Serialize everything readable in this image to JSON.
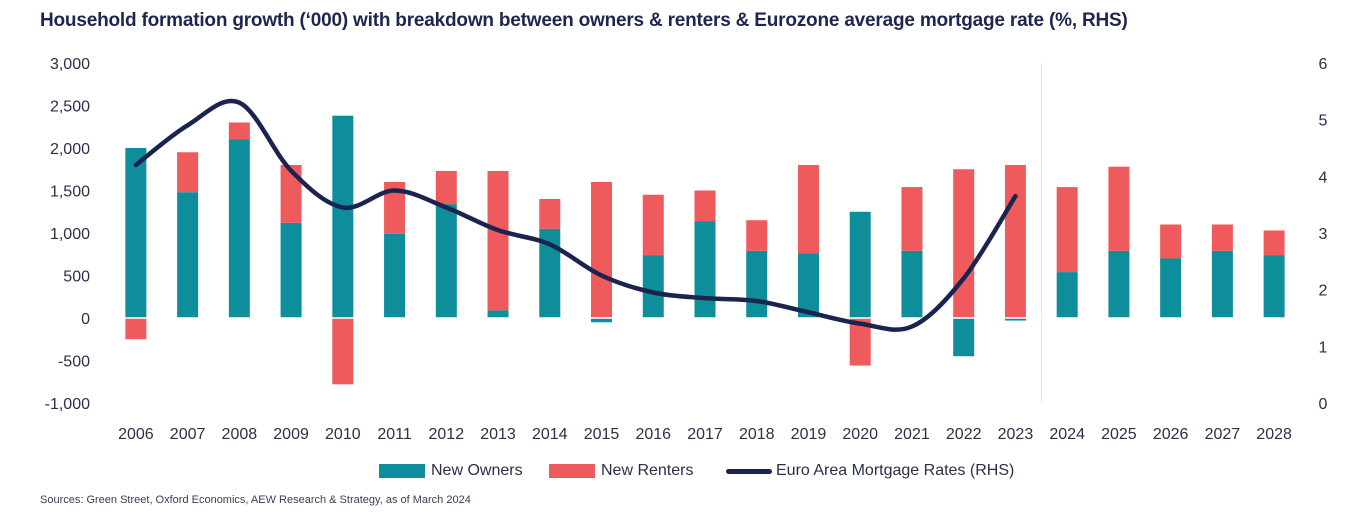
{
  "title": "Household formation growth (‘000) with breakdown between owners & renters & Eurozone average mortgage rate (%, RHS)",
  "source": "Sources: Green Street, Oxford Economics, AEW Research & Strategy, as of March 2024",
  "legend": {
    "owners": "New Owners",
    "renters": "New Renters",
    "rates": "Euro Area Mortgage Rates (RHS)"
  },
  "colors": {
    "owners": "#0e8d9b",
    "renters": "#ef5a5c",
    "rates": "#1b2350",
    "forecast_divider": "#d9e6f0"
  },
  "chart_data": {
    "type": "bar",
    "stacked": true,
    "categories": [
      "2006",
      "2007",
      "2008",
      "2009",
      "2010",
      "2011",
      "2012",
      "2013",
      "2014",
      "2015",
      "2016",
      "2017",
      "2018",
      "2019",
      "2020",
      "2021",
      "2022",
      "2023",
      "2024",
      "2025",
      "2026",
      "2027",
      "2028"
    ],
    "series": [
      {
        "name": "New Owners",
        "values": [
          2000,
          1480,
          2100,
          1120,
          2380,
          990,
          1340,
          90,
          1050,
          -50,
          740,
          1140,
          790,
          760,
          1250,
          790,
          -450,
          -30,
          540,
          790,
          700,
          790,
          740
        ]
      },
      {
        "name": "New Renters",
        "values": [
          -250,
          470,
          200,
          680,
          -780,
          610,
          390,
          1640,
          350,
          1600,
          710,
          360,
          360,
          1040,
          -560,
          750,
          1750,
          1800,
          1000,
          990,
          400,
          310,
          290
        ]
      }
    ],
    "line_series": {
      "name": "Euro Area Mortgage Rates (RHS)",
      "axis": "right",
      "x": [
        "2006",
        "2007",
        "2008",
        "2009",
        "2010",
        "2011",
        "2012",
        "2013",
        "2014",
        "2015",
        "2016",
        "2017",
        "2018",
        "2019",
        "2020",
        "2021",
        "2022",
        "2023"
      ],
      "values": [
        4.2,
        4.9,
        5.3,
        4.1,
        3.45,
        3.75,
        3.45,
        3.05,
        2.8,
        2.25,
        1.95,
        1.85,
        1.8,
        1.6,
        1.4,
        1.35,
        2.2,
        3.65
      ]
    },
    "y_left": {
      "min": -1000,
      "max": 3000,
      "ticks": [
        "3,000",
        "2,500",
        "2,000",
        "1,500",
        "1,000",
        "500",
        "0",
        "-500",
        "-1,000"
      ],
      "tick_values": [
        3000,
        2500,
        2000,
        1500,
        1000,
        500,
        0,
        -500,
        -1000
      ]
    },
    "y_right": {
      "min": 0,
      "max": 6,
      "ticks": [
        "6",
        "5",
        "4",
        "3",
        "2",
        "1",
        "0"
      ],
      "tick_values": [
        6,
        5,
        4,
        3,
        2,
        1,
        0
      ]
    },
    "forecast_start": "2024",
    "grid": false,
    "legend_position": "bottom"
  }
}
